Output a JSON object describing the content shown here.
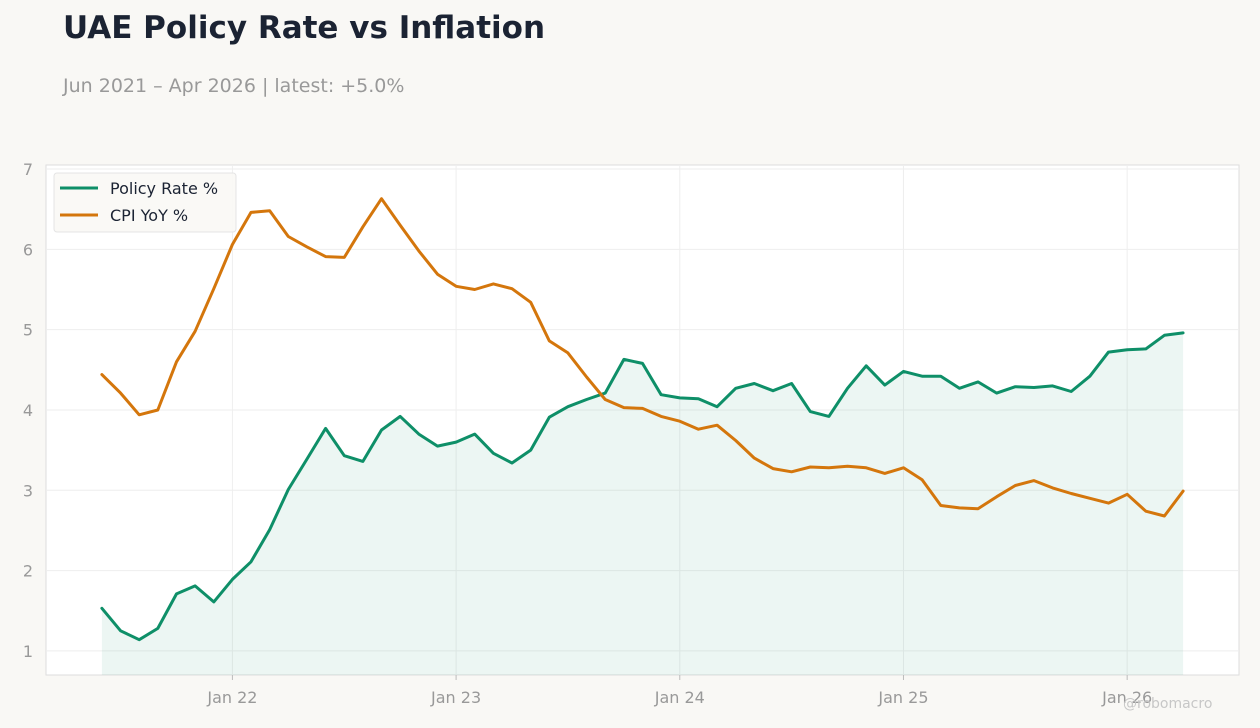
{
  "header": {
    "title": "UAE Policy Rate vs Inflation",
    "subtitle": "Jun 2021 – Apr 2026 | latest: +5.0%"
  },
  "watermark": "@robomacro",
  "colors": {
    "policy": "#0e8f68",
    "cpi": "#d4760c",
    "fill": "#0e8f68",
    "grid": "#eeeeee",
    "frame": "#dddddd",
    "plot_bg": "#ffffff",
    "page_bg": "#f9f8f5"
  },
  "chart_data": {
    "type": "line",
    "title": "UAE Policy Rate vs Inflation",
    "subtitle": "Jun 2021 – Apr 2026 | latest: +5.0%",
    "xlabel": "",
    "ylabel": "",
    "x_start": "2021-06",
    "x_end": "2026-04",
    "xlim": [
      "2021-03",
      "2026-07"
    ],
    "ylim": [
      0.7,
      7.05
    ],
    "yticks": [
      1,
      2,
      3,
      4,
      5,
      6,
      7
    ],
    "xticks": [
      {
        "date": "2022-01",
        "label": "Jan 22"
      },
      {
        "date": "2023-01",
        "label": "Jan 23"
      },
      {
        "date": "2024-01",
        "label": "Jan 24"
      },
      {
        "date": "2025-01",
        "label": "Jan 25"
      },
      {
        "date": "2026-01",
        "label": "Jan 26"
      }
    ],
    "grid": true,
    "legend_position": "top-left",
    "series": [
      {
        "name": "Policy Rate %",
        "color": "#0e8f68",
        "fill": true,
        "values": [
          1.53,
          1.25,
          1.14,
          1.28,
          1.71,
          1.81,
          1.61,
          1.89,
          2.11,
          2.51,
          3.01,
          3.39,
          3.77,
          3.43,
          3.36,
          3.75,
          3.92,
          3.7,
          3.55,
          3.6,
          3.7,
          3.46,
          3.34,
          3.5,
          3.91,
          4.04,
          4.13,
          4.21,
          4.63,
          4.58,
          4.19,
          4.15,
          4.14,
          4.04,
          4.27,
          4.33,
          4.24,
          4.33,
          3.98,
          3.92,
          4.27,
          4.55,
          4.31,
          4.48,
          4.42,
          4.42,
          4.27,
          4.35,
          4.21,
          4.29,
          4.28,
          4.3,
          4.23,
          4.42,
          4.72,
          4.75,
          4.76,
          4.93,
          4.96
        ]
      },
      {
        "name": "CPI YoY %",
        "color": "#d4760c",
        "fill": false,
        "values": [
          4.44,
          4.21,
          3.94,
          4.0,
          4.6,
          4.98,
          5.51,
          6.06,
          6.46,
          6.48,
          6.16,
          6.03,
          5.91,
          5.9,
          6.28,
          6.63,
          6.3,
          5.98,
          5.69,
          5.54,
          5.5,
          5.57,
          5.51,
          5.34,
          4.86,
          4.71,
          4.41,
          4.13,
          4.03,
          4.02,
          3.92,
          3.86,
          3.76,
          3.81,
          3.62,
          3.4,
          3.27,
          3.23,
          3.29,
          3.28,
          3.3,
          3.28,
          3.21,
          3.28,
          3.13,
          2.81,
          2.78,
          2.77,
          2.92,
          3.06,
          3.12,
          3.03,
          2.96,
          2.9,
          2.84,
          2.95,
          2.74,
          2.68,
          2.99
        ]
      }
    ]
  }
}
